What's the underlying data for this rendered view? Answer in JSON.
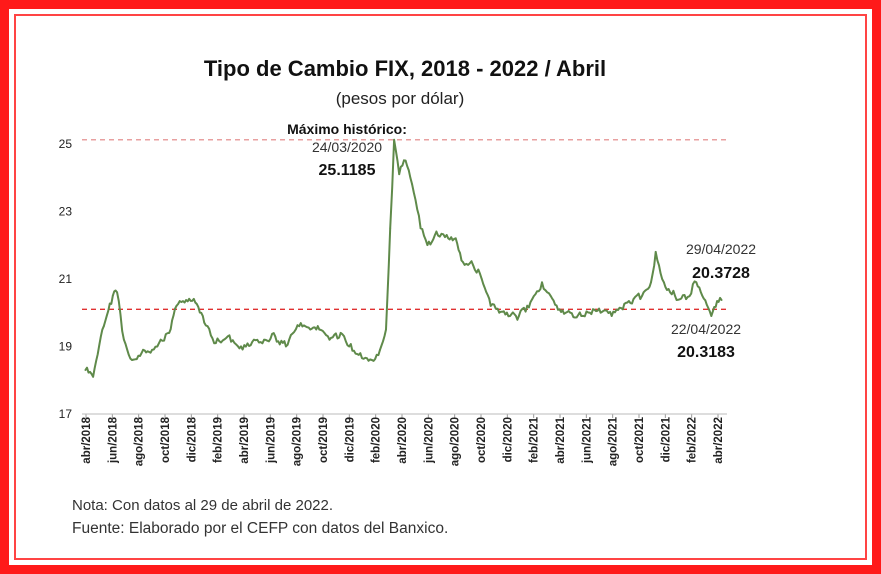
{
  "chart_data": {
    "type": "line",
    "title": "Tipo de Cambio FIX, 2018 - 2022 / Abril",
    "subtitle": "(pesos por dólar)",
    "ylim": [
      17,
      25.2
    ],
    "yticks": [
      17,
      19,
      21,
      23,
      25
    ],
    "x_tick_labels": [
      "abr/2018",
      "jun/2018",
      "ago/2018",
      "oct/2018",
      "dic/2018",
      "feb/2019",
      "abr/2019",
      "jun/2019",
      "ago/2019",
      "oct/2019",
      "dic/2019",
      "feb/2020",
      "abr/2020",
      "jun/2020",
      "ago/2020",
      "oct/2020",
      "dic/2020",
      "feb/2021",
      "abr/2021",
      "jun/2021",
      "ago/2021",
      "oct/2021",
      "dic/2021",
      "feb/2022",
      "abr/2022"
    ],
    "grid": false,
    "reference_lines": [
      {
        "y": 25.1185,
        "style": "dashed",
        "color": "#e8a0a0"
      },
      {
        "y": 20.1,
        "style": "dashed",
        "color": "#e03030"
      }
    ],
    "series": [
      {
        "color": "#5f8a4a",
        "x": [
          "2018-04-02",
          "2018-04-20",
          "2018-05-15",
          "2018-06-05",
          "2018-06-15",
          "2018-07-01",
          "2018-07-20",
          "2018-08-15",
          "2018-09-05",
          "2018-09-25",
          "2018-10-15",
          "2018-11-01",
          "2018-11-20",
          "2018-12-15",
          "2019-01-05",
          "2019-02-01",
          "2019-03-01",
          "2019-04-01",
          "2019-05-01",
          "2019-05-25",
          "2019-06-20",
          "2019-07-15",
          "2019-08-15",
          "2019-09-10",
          "2019-10-01",
          "2019-10-25",
          "2019-11-20",
          "2019-12-10",
          "2020-01-05",
          "2020-02-01",
          "2020-02-20",
          "2020-03-05",
          "2020-03-15",
          "2020-03-24",
          "2020-04-05",
          "2020-04-20",
          "2020-05-05",
          "2020-05-25",
          "2020-06-10",
          "2020-07-01",
          "2020-07-25",
          "2020-08-15",
          "2020-09-01",
          "2020-09-25",
          "2020-10-15",
          "2020-11-05",
          "2020-11-25",
          "2020-12-20",
          "2021-01-10",
          "2021-02-10",
          "2021-03-05",
          "2021-03-25",
          "2021-04-15",
          "2021-05-10",
          "2021-06-05",
          "2021-06-25",
          "2021-07-20",
          "2021-08-15",
          "2021-09-10",
          "2021-10-05",
          "2021-10-25",
          "2021-11-15",
          "2021-11-26",
          "2021-12-15",
          "2022-01-10",
          "2022-02-05",
          "2022-03-01",
          "2022-03-15",
          "2022-04-05",
          "2022-04-22",
          "2022-04-29"
        ],
        "values": [
          18.3,
          18.1,
          19.6,
          20.5,
          20.6,
          19.2,
          18.6,
          18.9,
          18.9,
          19.2,
          19.4,
          20.2,
          20.3,
          20.3,
          19.7,
          19.1,
          19.3,
          19.0,
          19.2,
          19.2,
          19.3,
          19.0,
          19.6,
          19.5,
          19.5,
          19.2,
          19.4,
          19.0,
          18.8,
          18.6,
          18.9,
          19.5,
          22.5,
          25.1185,
          24.1,
          24.5,
          23.8,
          22.5,
          22.0,
          22.4,
          22.3,
          22.2,
          21.5,
          21.4,
          21.0,
          20.2,
          20.0,
          19.9,
          19.9,
          20.4,
          20.9,
          20.5,
          20.1,
          20.0,
          19.9,
          20.0,
          20.0,
          19.9,
          20.1,
          20.4,
          20.5,
          20.9,
          21.8,
          20.9,
          20.5,
          20.4,
          20.9,
          20.5,
          19.9,
          20.3183,
          20.3728
        ]
      }
    ],
    "annotations": {
      "max_label": "Máximo histórico:",
      "max_date": "24/03/2020",
      "max_value": "25.1185",
      "last_date": "29/04/2022",
      "last_value": "20.3728",
      "prev_date": "22/04/2022",
      "prev_value": "20.3183"
    }
  },
  "notes": {
    "note": "Nota: Con datos al 29 de abril de 2022.",
    "source": "Fuente: Elaborado por el CEFP con datos del Banxico."
  }
}
